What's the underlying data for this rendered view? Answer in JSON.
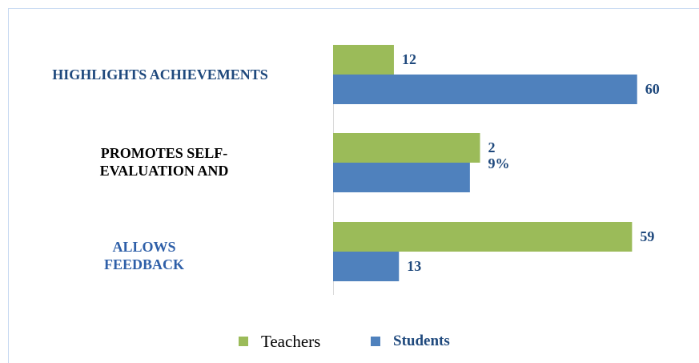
{
  "chart_data": {
    "type": "bar",
    "orientation": "horizontal",
    "categories": [
      "HIGHLIGHTS ACHIEVEMENTS",
      "PROMOTES SELF-EVALUATION AND",
      "ALLOWS FEEDBACK"
    ],
    "category_colors": [
      "#1f497d",
      "#000000",
      "#2e5fa8"
    ],
    "series": [
      {
        "name": "Teachers",
        "color": "#9bbb59",
        "values": [
          12,
          29,
          59
        ],
        "value_labels": [
          "12",
          "29%",
          "59"
        ]
      },
      {
        "name": "Students",
        "color": "#4f81bd",
        "values": [
          60,
          27,
          13
        ],
        "value_labels": [
          "60",
          null,
          "13"
        ]
      }
    ],
    "xlim": [
      0,
      70
    ],
    "legend": "bottom"
  }
}
